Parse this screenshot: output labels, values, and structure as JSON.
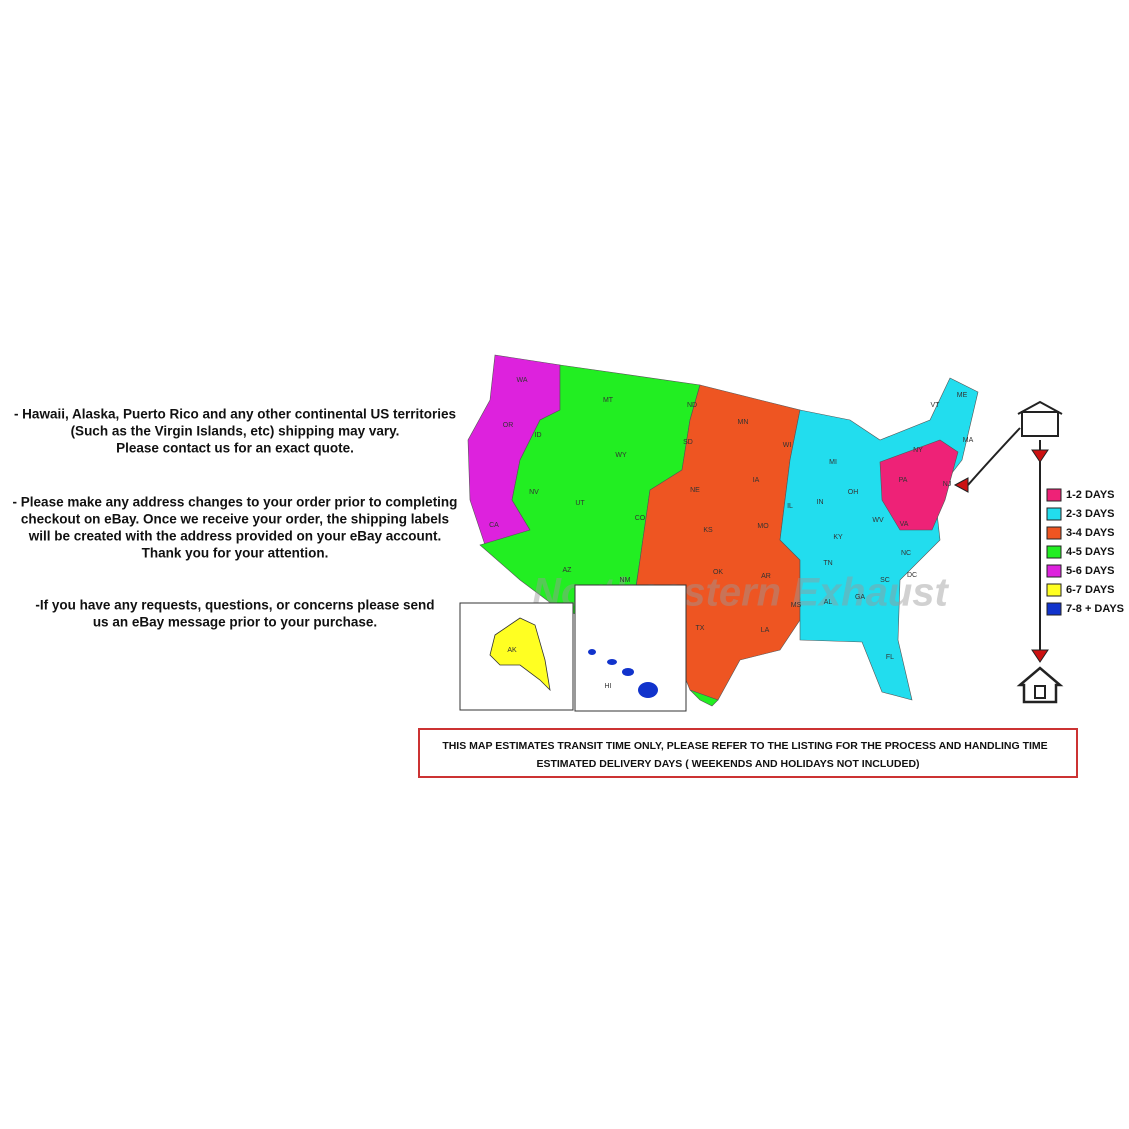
{
  "notes": [
    [
      "- Hawaii, Alaska, Puerto Rico and any other continental US territories",
      "(Such as the Virgin Islands, etc) shipping may vary.",
      "Please contact us for an exact quote."
    ],
    [
      "- Please make any address changes to your order prior to completing",
      "checkout on eBay. Once we receive your order, the shipping labels",
      "will be created with the address provided on your eBay account.",
      "Thank you for your attention."
    ],
    [
      "-If you have any requests, questions, or concerns please send",
      "us an eBay message prior to your purchase."
    ]
  ],
  "map": {
    "watermark": "Northeastern Exhaust",
    "state_labels": [
      "WA",
      "OR",
      "CA",
      "MT",
      "ID",
      "NV",
      "UT",
      "AZ",
      "WY",
      "CO",
      "NM",
      "ND",
      "SD",
      "NE",
      "KS",
      "OK",
      "TX",
      "MN",
      "IA",
      "MO",
      "AR",
      "LA",
      "WI",
      "IL",
      "MI",
      "IN",
      "OH",
      "KY",
      "TN",
      "MS",
      "AL",
      "GA",
      "FL",
      "SC",
      "NC",
      "VA",
      "WV",
      "PA",
      "NY",
      "VT",
      "ME",
      "MA",
      "NJ",
      "DC",
      "AK",
      "HI"
    ]
  },
  "legend": [
    {
      "label": "1-2 DAYS",
      "color": "#ee2277"
    },
    {
      "label": "2-3 DAYS",
      "color": "#22ddee"
    },
    {
      "label": "3-4 DAYS",
      "color": "#ee5522"
    },
    {
      "label": "4-5 DAYS",
      "color": "#22ee22"
    },
    {
      "label": "5-6 DAYS",
      "color": "#dd22dd"
    },
    {
      "label": "6-7 DAYS",
      "color": "#ffff22"
    },
    {
      "label": "7-8 + DAYS",
      "color": "#1133cc"
    }
  ],
  "disclaimer": [
    "THIS MAP ESTIMATES TRANSIT TIME ONLY, PLEASE REFER TO THE LISTING FOR THE PROCESS AND HANDLING TIME",
    "ESTIMATED DELIVERY DAYS ( WEEKENDS AND HOLIDAYS NOT INCLUDED)"
  ]
}
